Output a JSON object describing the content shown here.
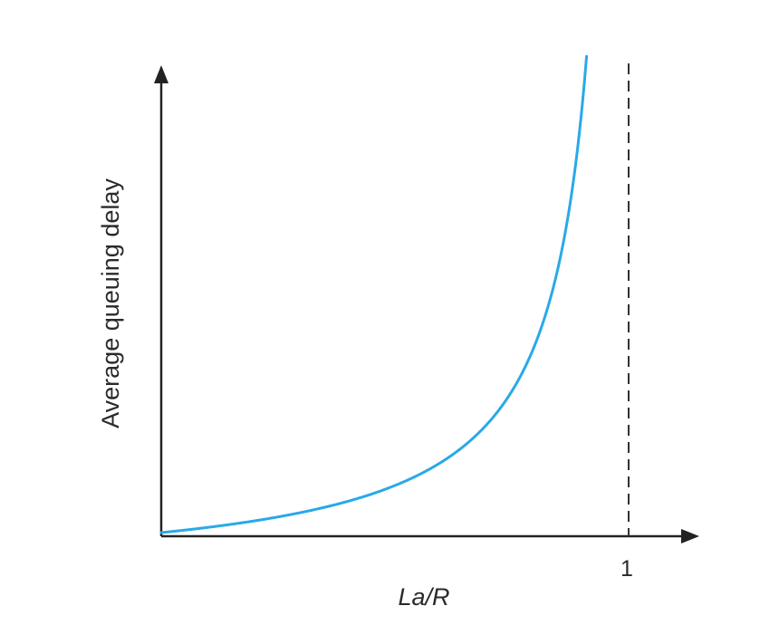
{
  "chart_data": {
    "type": "line",
    "title": "",
    "xlabel": "La/R",
    "ylabel": "Average queuing delay",
    "xlim": [
      0,
      1.1
    ],
    "ylim": [
      0,
      10
    ],
    "x_ticks": [
      {
        "value": 1,
        "label": "1"
      }
    ],
    "y_ticks": [],
    "grid": false,
    "reference_lines": [
      {
        "axis": "x",
        "value": 1,
        "style": "dashed"
      }
    ],
    "series": [
      {
        "curve": "y = x / (1 - x)",
        "x_range": [
          0,
          0.91
        ],
        "color": "#29a9e8"
      }
    ]
  },
  "colors": {
    "axis": "#222222",
    "curve": "#29a9e8",
    "reference_line": "#333333"
  }
}
